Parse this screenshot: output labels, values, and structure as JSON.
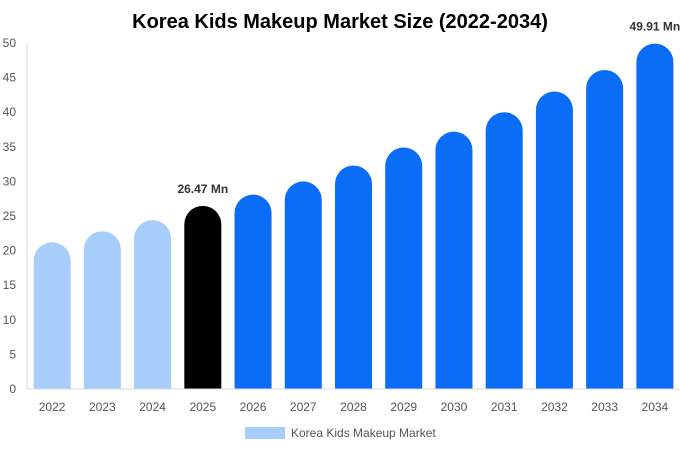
{
  "chart_data": {
    "type": "bar",
    "title": "Korea Kids Makeup Market Size (2022-2034)",
    "categories": [
      "2022",
      "2023",
      "2024",
      "2025",
      "2026",
      "2027",
      "2028",
      "2029",
      "2030",
      "2031",
      "2032",
      "2033",
      "2034"
    ],
    "series": [
      {
        "name": "Korea Kids Makeup Market",
        "values": [
          21.2,
          22.8,
          24.4,
          26.47,
          28.1,
          30.0,
          32.3,
          34.9,
          37.2,
          40.0,
          43.0,
          46.1,
          49.91
        ]
      }
    ],
    "bar_colors": [
      "#a7cdfb",
      "#a7cdfb",
      "#a7cdfb",
      "#000000",
      "#0b6cf5",
      "#0b6cf5",
      "#0b6cf5",
      "#0b6cf5",
      "#0b6cf5",
      "#0b6cf5",
      "#0b6cf5",
      "#0b6cf5",
      "#0b6cf5"
    ],
    "data_labels": [
      {
        "index": 3,
        "text": "26.47 Mn"
      },
      {
        "index": 12,
        "text": "49.91 Mn"
      }
    ],
    "y_ticks": [
      "0",
      "5",
      "10",
      "15",
      "20",
      "25",
      "30",
      "35",
      "40",
      "45",
      "50"
    ],
    "ylim": [
      0,
      50
    ],
    "xlabel": "",
    "ylabel": "",
    "grid": false,
    "legend": {
      "position": "bottom",
      "label": "Korea Kids Makeup Market",
      "color": "#a7cdfb"
    },
    "axis_color": "#d9d9d9"
  }
}
